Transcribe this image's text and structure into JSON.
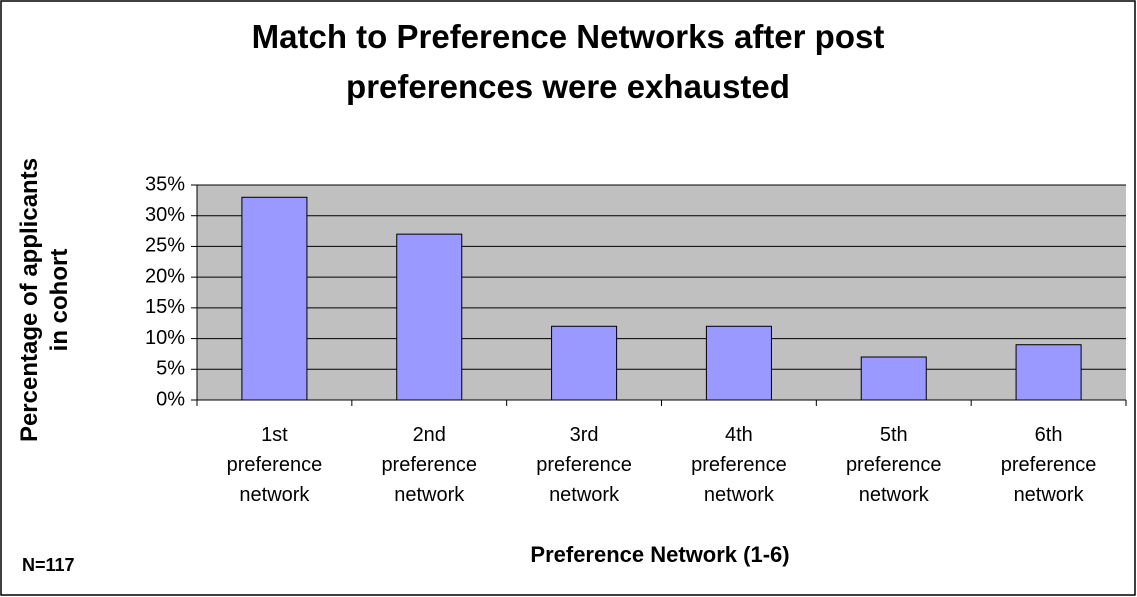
{
  "chart_data": {
    "type": "bar",
    "title": "Match to Preference Networks after post preferences were exhausted",
    "ylabel": "Percentage of applicants in cohort",
    "xlabel": "Preference Network (1-6)",
    "annotation": "N=117",
    "categories": [
      "1st preference network",
      "2nd preference network",
      "3rd preference network",
      "4th preference network",
      "5th preference network",
      "6th preference network"
    ],
    "values": [
      33,
      27,
      12,
      12,
      7,
      9
    ],
    "color": "#9999ff",
    "ylim": [
      0,
      35
    ],
    "yticks": [
      {
        "value": 0,
        "label": "0%"
      },
      {
        "value": 5,
        "label": "5%"
      },
      {
        "value": 10,
        "label": "10%"
      },
      {
        "value": 15,
        "label": "15%"
      },
      {
        "value": 20,
        "label": "20%"
      },
      {
        "value": 25,
        "label": "25%"
      },
      {
        "value": 30,
        "label": "30%"
      },
      {
        "value": 35,
        "label": "35%"
      }
    ],
    "grid": true
  }
}
